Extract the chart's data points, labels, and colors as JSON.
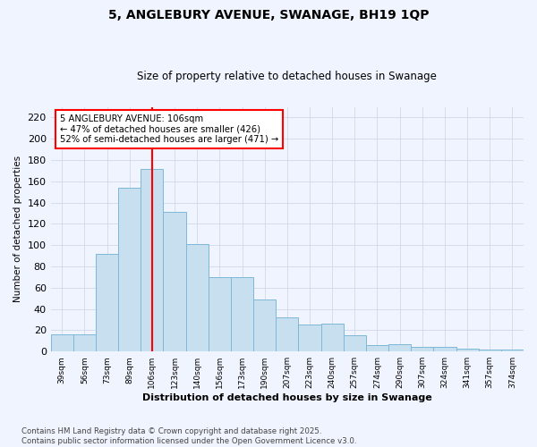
{
  "title": "5, ANGLEBURY AVENUE, SWANAGE, BH19 1QP",
  "subtitle": "Size of property relative to detached houses in Swanage",
  "xlabel": "Distribution of detached houses by size in Swanage",
  "ylabel": "Number of detached properties",
  "categories": [
    "39sqm",
    "56sqm",
    "73sqm",
    "89sqm",
    "106sqm",
    "123sqm",
    "140sqm",
    "156sqm",
    "173sqm",
    "190sqm",
    "207sqm",
    "223sqm",
    "240sqm",
    "257sqm",
    "274sqm",
    "290sqm",
    "307sqm",
    "324sqm",
    "341sqm",
    "357sqm",
    "374sqm"
  ],
  "values": [
    16,
    16,
    92,
    154,
    172,
    131,
    101,
    70,
    70,
    49,
    32,
    25,
    26,
    15,
    6,
    7,
    4,
    4,
    3,
    2,
    2
  ],
  "bar_color": "#c8dff0",
  "bar_edge_color": "#7eb8d8",
  "highlight_x": "106sqm",
  "highlight_line_color": "red",
  "annotation_text": "5 ANGLEBURY AVENUE: 106sqm\n← 47% of detached houses are smaller (426)\n52% of semi-detached houses are larger (471) →",
  "annotation_box_color": "white",
  "annotation_box_edge": "red",
  "ylim": [
    0,
    230
  ],
  "yticks": [
    0,
    20,
    40,
    60,
    80,
    100,
    120,
    140,
    160,
    180,
    200,
    220
  ],
  "footer": "Contains HM Land Registry data © Crown copyright and database right 2025.\nContains public sector information licensed under the Open Government Licence v3.0.",
  "bg_color": "#f0f4ff",
  "grid_color": "#d0d8e8"
}
